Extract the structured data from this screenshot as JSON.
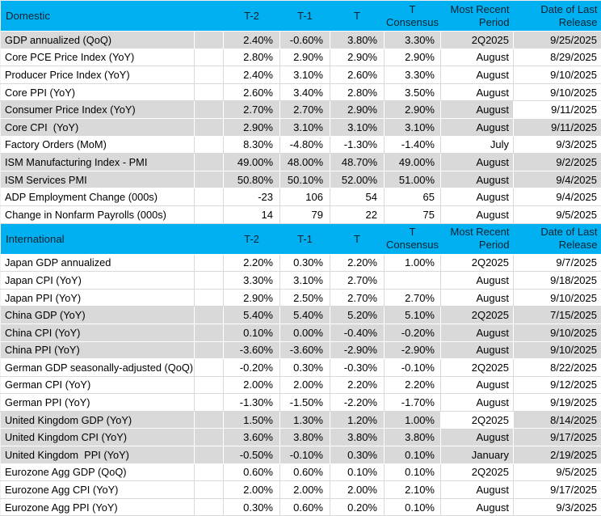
{
  "columns": [
    "T-2",
    "T-1",
    "T",
    "T Consensus",
    "Most Recent Period",
    "Date of Last Release"
  ],
  "colors": {
    "section_header_bg": "#00B0F0",
    "section_header_text": "#0E2230",
    "row_shade_gray": "#D9D9D9",
    "row_shade_white": "#FFFFFF",
    "gridline": "#D9D9D9"
  },
  "sections": [
    {
      "title": "Domestic",
      "rows": [
        {
          "label": "GDP annualized (QoQ)",
          "t2": "2.40%",
          "t1": "-0.60%",
          "t": "3.80%",
          "consensus": "3.30%",
          "period": "2Q2025",
          "date": "9/25/2025",
          "shade": "gray"
        },
        {
          "label": "Core PCE Price Index (YoY)",
          "t2": "2.80%",
          "t1": "2.90%",
          "t": "2.90%",
          "consensus": "2.90%",
          "period": "August",
          "date": "8/29/2025",
          "shade": "white"
        },
        {
          "label": "Producer Price Index (YoY)",
          "t2": "2.40%",
          "t1": "3.10%",
          "t": "2.60%",
          "consensus": "3.30%",
          "period": "August",
          "date": "9/10/2025",
          "shade": "white"
        },
        {
          "label": "Core PPI (YoY)",
          "t2": "2.60%",
          "t1": "3.40%",
          "t": "2.80%",
          "consensus": "3.50%",
          "period": "August",
          "date": "9/10/2025",
          "shade": "white"
        },
        {
          "label": "Consumer Price Index (YoY)",
          "t2": "2.70%",
          "t1": "2.70%",
          "t": "2.90%",
          "consensus": "2.90%",
          "period": "August",
          "date": "9/11/2025",
          "shade": "gray",
          "white_cells": [
            "date"
          ]
        },
        {
          "label": "Core CPI  (YoY)",
          "t2": "2.90%",
          "t1": "3.10%",
          "t": "3.10%",
          "consensus": "3.10%",
          "period": "August",
          "date": "9/11/2025",
          "shade": "gray"
        },
        {
          "label": "Factory Orders (MoM)",
          "t2": "8.30%",
          "t1": "-4.80%",
          "t": "-1.30%",
          "consensus": "-1.40%",
          "period": "July",
          "date": "9/3/2025",
          "shade": "white"
        },
        {
          "label": "ISM Manufacturing Index - PMI",
          "t2": "49.00%",
          "t1": "48.00%",
          "t": "48.70%",
          "consensus": "49.00%",
          "period": "August",
          "date": "9/2/2025",
          "shade": "gray"
        },
        {
          "label": "ISM Services PMI",
          "t2": "50.80%",
          "t1": "50.10%",
          "t": "52.00%",
          "consensus": "51.00%",
          "period": "August",
          "date": "9/4/2025",
          "shade": "gray"
        },
        {
          "label": "ADP Employment Change (000s)",
          "t2": "-23",
          "t1": "106",
          "t": "54",
          "consensus": "65",
          "period": "August",
          "date": "9/4/2025",
          "shade": "white"
        },
        {
          "label": "Change in Nonfarm Payrolls (000s)",
          "t2": "14",
          "t1": "79",
          "t": "22",
          "consensus": "75",
          "period": "August",
          "date": "9/5/2025",
          "shade": "white"
        }
      ]
    },
    {
      "title": "International",
      "rows": [
        {
          "label": "Japan GDP annualized",
          "t2": "2.20%",
          "t1": "0.30%",
          "t": "2.20%",
          "consensus": "1.00%",
          "period": "2Q2025",
          "date": "9/7/2025",
          "shade": "white"
        },
        {
          "label": "Japan CPI (YoY)",
          "t2": "3.30%",
          "t1": "3.10%",
          "t": "2.70%",
          "consensus": "",
          "period": "August",
          "date": "9/18/2025",
          "shade": "white"
        },
        {
          "label": "Japan PPI (YoY)",
          "t2": "2.90%",
          "t1": "2.50%",
          "t": "2.70%",
          "consensus": "2.70%",
          "period": "August",
          "date": "9/10/2025",
          "shade": "white"
        },
        {
          "label": "China GDP (YoY)",
          "t2": "5.40%",
          "t1": "5.40%",
          "t": "5.20%",
          "consensus": "5.10%",
          "period": "2Q2025",
          "date": "7/15/2025",
          "shade": "gray"
        },
        {
          "label": "China CPI (YoY)",
          "t2": "0.10%",
          "t1": "0.00%",
          "t": "-0.40%",
          "consensus": "-0.20%",
          "period": "August",
          "date": "9/10/2025",
          "shade": "gray"
        },
        {
          "label": "China PPI (YoY)",
          "t2": "-3.60%",
          "t1": "-3.60%",
          "t": "-2.90%",
          "consensus": "-2.90%",
          "period": "August",
          "date": "9/10/2025",
          "shade": "gray"
        },
        {
          "label": "German GDP seasonally-adjusted (QoQ)",
          "t2": "-0.20%",
          "t1": "0.30%",
          "t": "-0.30%",
          "consensus": "-0.10%",
          "period": "2Q2025",
          "date": "8/22/2025",
          "shade": "white"
        },
        {
          "label": "German CPI (YoY)",
          "t2": "2.00%",
          "t1": "2.00%",
          "t": "2.20%",
          "consensus": "2.20%",
          "period": "August",
          "date": "9/12/2025",
          "shade": "white"
        },
        {
          "label": "German PPI (YoY)",
          "t2": "-1.30%",
          "t1": "-1.50%",
          "t": "-2.20%",
          "consensus": "-1.70%",
          "period": "August",
          "date": "9/19/2025",
          "shade": "white"
        },
        {
          "label": "United Kingdom GDP (YoY)",
          "t2": "1.50%",
          "t1": "1.30%",
          "t": "1.20%",
          "consensus": "1.00%",
          "period": "2Q2025",
          "date": "8/14/2025",
          "shade": "gray",
          "white_cells": [
            "period"
          ]
        },
        {
          "label": "United Kingdom CPI (YoY)",
          "t2": "3.60%",
          "t1": "3.80%",
          "t": "3.80%",
          "consensus": "3.80%",
          "period": "August",
          "date": "9/17/2025",
          "shade": "gray"
        },
        {
          "label": "United Kingdom  PPI (YoY)",
          "t2": "-0.50%",
          "t1": "-0.10%",
          "t": "0.30%",
          "consensus": "0.10%",
          "period": "January",
          "date": "2/19/2025",
          "shade": "gray"
        },
        {
          "label": "Eurozone Agg GDP (QoQ)",
          "t2": "0.60%",
          "t1": "0.60%",
          "t": "0.10%",
          "consensus": "0.10%",
          "period": "2Q2025",
          "date": "9/5/2025",
          "shade": "white"
        },
        {
          "label": "Eurozone Agg CPI (YoY)",
          "t2": "2.00%",
          "t1": "2.00%",
          "t": "2.00%",
          "consensus": "2.10%",
          "period": "August",
          "date": "9/17/2025",
          "shade": "white"
        },
        {
          "label": "Eurozone Agg PPI (YoY)",
          "t2": "0.30%",
          "t1": "0.60%",
          "t": "0.20%",
          "consensus": "0.10%",
          "period": "August",
          "date": "9/3/2025",
          "shade": "white"
        }
      ]
    }
  ]
}
